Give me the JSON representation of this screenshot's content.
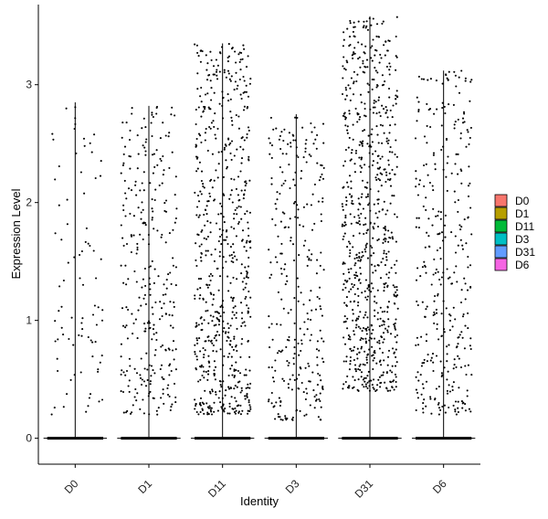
{
  "chart_data": {
    "type": "scatter",
    "subtype": "violin-jitter",
    "title": "",
    "xlabel": "Identity",
    "ylabel": "Expression Level",
    "ylim": [
      -0.22,
      3.68
    ],
    "yticks": [
      0,
      1,
      2,
      3
    ],
    "grid": false,
    "legend_position": "right",
    "categories": [
      "D0",
      "D1",
      "D11",
      "D3",
      "D31",
      "D6"
    ],
    "series": [
      {
        "name": "D0",
        "color": "#F8766D",
        "max": 2.85,
        "zero_fraction": 0.82,
        "nonzero_points": 85,
        "nonzero_range": [
          0.2,
          2.85
        ]
      },
      {
        "name": "D1",
        "color": "#B79F00",
        "max": 2.82,
        "zero_fraction": 0.7,
        "nonzero_points": 300,
        "nonzero_range": [
          0.2,
          2.82
        ]
      },
      {
        "name": "D11",
        "color": "#00BA38",
        "max": 3.35,
        "zero_fraction": 0.55,
        "nonzero_points": 650,
        "nonzero_range": [
          0.2,
          3.35
        ]
      },
      {
        "name": "D3",
        "color": "#00BFC4",
        "max": 2.75,
        "zero_fraction": 0.7,
        "nonzero_points": 290,
        "nonzero_range": [
          0.15,
          2.75
        ]
      },
      {
        "name": "D31",
        "color": "#619CFF",
        "max": 3.58,
        "zero_fraction": 0.45,
        "nonzero_points": 750,
        "nonzero_range": [
          0.4,
          3.58
        ]
      },
      {
        "name": "D6",
        "color": "#F564E3",
        "max": 3.12,
        "zero_fraction": 0.65,
        "nonzero_points": 340,
        "nonzero_range": [
          0.2,
          3.12
        ]
      }
    ]
  }
}
